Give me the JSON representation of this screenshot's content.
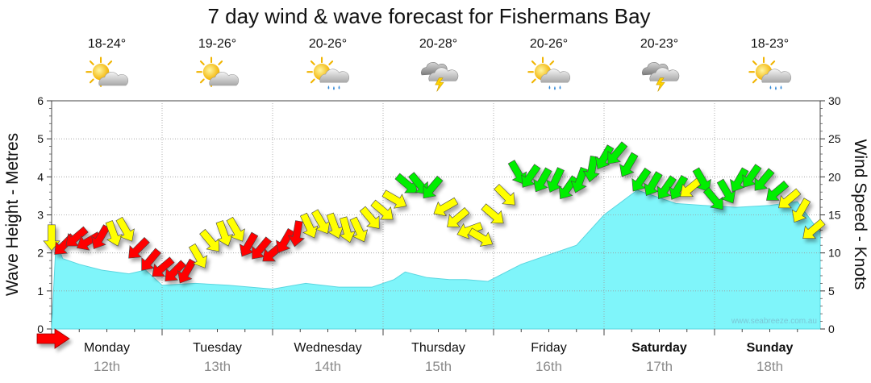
{
  "chart_data": {
    "type": "area",
    "title": "7 day wind & wave forecast for Fishermans Bay",
    "watermark": "www.seabreeze.com.au",
    "ylabel": "Wave Height - Metres",
    "y2label": "Wind Speed - Knots",
    "ylim": [
      0,
      6
    ],
    "y2lim": [
      0,
      30
    ],
    "yticks": [
      "0",
      "1",
      "2",
      "3",
      "4",
      "5",
      "6"
    ],
    "y2ticks": [
      "0",
      "5",
      "10",
      "15",
      "20",
      "25",
      "30"
    ],
    "days": [
      {
        "day": "Monday",
        "date": "12th",
        "temp": "18-24°",
        "icon": "sun-cloud-icon",
        "bold": false
      },
      {
        "day": "Tuesday",
        "date": "13th",
        "temp": "19-26°",
        "icon": "sun-cloud-icon",
        "bold": false
      },
      {
        "day": "Wednesday",
        "date": "14th",
        "temp": "20-26°",
        "icon": "sun-cloud-rain-icon",
        "bold": false
      },
      {
        "day": "Thursday",
        "date": "15th",
        "temp": "20-28°",
        "icon": "storm-icon",
        "bold": false
      },
      {
        "day": "Friday",
        "date": "16th",
        "temp": "20-26°",
        "icon": "sun-cloud-rain-icon",
        "bold": false
      },
      {
        "day": "Saturday",
        "date": "17th",
        "temp": "20-23°",
        "icon": "storm-icon",
        "bold": true
      },
      {
        "day": "Sunday",
        "date": "18th",
        "temp": "18-23°",
        "icon": "sun-cloud-rain-icon",
        "bold": true
      }
    ],
    "wave_series": {
      "name": "Wave height",
      "color": "#7ff5fa",
      "x": [
        0,
        0.04,
        0.1,
        0.25,
        0.45,
        0.7,
        0.85,
        1.0,
        1.3,
        1.6,
        2.0,
        2.3,
        2.6,
        2.9,
        3.1,
        3.2,
        3.4,
        3.6,
        3.75,
        3.95,
        4.25,
        4.5,
        4.75,
        5.0,
        5.3,
        5.65,
        5.9,
        6.2,
        6.5,
        6.75,
        6.95
      ],
      "values": [
        0,
        2.3,
        1.85,
        1.7,
        1.55,
        1.45,
        1.55,
        1.15,
        1.2,
        1.15,
        1.05,
        1.2,
        1.1,
        1.1,
        1.3,
        1.5,
        1.35,
        1.3,
        1.3,
        1.25,
        1.7,
        1.95,
        2.2,
        3.0,
        3.65,
        3.3,
        3.25,
        3.2,
        3.25,
        3.35,
        2.55
      ]
    },
    "wind_series": {
      "name": "Wind",
      "unit": "knots",
      "colors": {
        "light": "#ffff00",
        "moderate": "#ff0000",
        "fresh": "#00ee00",
        "strong": "#ff0000"
      },
      "x": [
        0.0,
        0.11,
        0.22,
        0.33,
        0.44,
        0.56,
        0.67,
        0.78,
        0.89,
        1.0,
        1.11,
        1.22,
        1.33,
        1.44,
        1.56,
        1.67,
        1.78,
        1.89,
        2.0,
        2.11,
        2.22,
        2.33,
        2.44,
        2.56,
        2.67,
        2.78,
        2.89,
        3.0,
        3.11,
        3.22,
        3.33,
        3.44,
        3.56,
        3.67,
        3.78,
        3.89,
        4.0,
        4.11,
        4.22,
        4.33,
        4.44,
        4.56,
        4.67,
        4.78,
        4.89,
        5.0,
        5.11,
        5.22,
        5.33,
        5.44,
        5.56,
        5.67,
        5.78,
        5.89,
        6.0,
        6.11,
        6.22,
        6.33,
        6.44,
        6.56,
        6.67,
        6.78,
        6.89
      ],
      "speed": [
        12,
        11,
        12,
        11.5,
        12,
        12.5,
        13,
        10.5,
        9,
        8,
        7.5,
        7.5,
        9.5,
        11.5,
        12.5,
        13,
        11,
        10.5,
        10,
        11.5,
        12.5,
        13.5,
        14,
        13.5,
        13,
        13,
        14.5,
        15.5,
        17,
        19,
        19,
        18.5,
        16,
        14.5,
        13,
        12,
        15,
        17.5,
        20.5,
        20,
        19.5,
        19.5,
        18.5,
        19.5,
        21,
        22.5,
        23,
        21.5,
        19.5,
        19,
        18.5,
        18.5,
        18.5,
        19.5,
        17,
        18,
        19.5,
        20,
        19.5,
        18,
        17,
        15.5,
        13
      ],
      "levels": [
        "light",
        "moderate",
        "moderate",
        "moderate",
        "moderate",
        "light",
        "light",
        "moderate",
        "moderate",
        "moderate",
        "moderate",
        "moderate",
        "light",
        "light",
        "light",
        "light",
        "moderate",
        "moderate",
        "moderate",
        "moderate",
        "moderate",
        "light",
        "light",
        "light",
        "light",
        "light",
        "light",
        "light",
        "light",
        "fresh",
        "fresh",
        "fresh",
        "light",
        "light",
        "light",
        "light",
        "light",
        "light",
        "fresh",
        "fresh",
        "fresh",
        "fresh",
        "fresh",
        "fresh",
        "fresh",
        "fresh",
        "fresh",
        "fresh",
        "fresh",
        "fresh",
        "fresh",
        "fresh",
        "light",
        "fresh",
        "fresh",
        "fresh",
        "fresh",
        "fresh",
        "fresh",
        "fresh",
        "light",
        "light",
        "light"
      ],
      "direction_deg": [
        270,
        315,
        320,
        330,
        300,
        250,
        240,
        315,
        310,
        320,
        315,
        300,
        240,
        230,
        250,
        240,
        300,
        310,
        320,
        300,
        280,
        245,
        240,
        250,
        255,
        245,
        230,
        220,
        210,
        220,
        230,
        310,
        330,
        320,
        340,
        210,
        220,
        225,
        240,
        305,
        300,
        295,
        305,
        290,
        280,
        300,
        310,
        300,
        305,
        300,
        305,
        300,
        320,
        240,
        230,
        240,
        300,
        305,
        310,
        320,
        320,
        300,
        320
      ]
    },
    "grid": true,
    "legend": "none"
  }
}
